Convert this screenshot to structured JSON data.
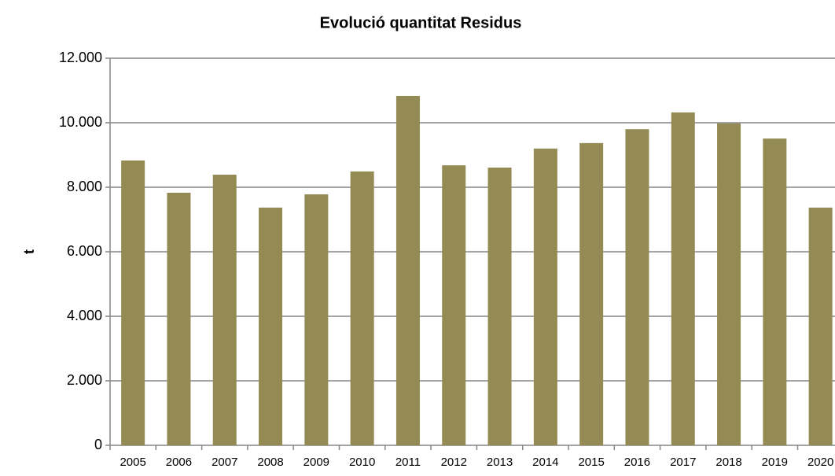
{
  "chart_data": {
    "type": "bar",
    "title": "Evolució quantitat Residus",
    "y_label": "t",
    "categories": [
      "2005",
      "2006",
      "2007",
      "2008",
      "2009",
      "2010",
      "2011",
      "2012",
      "2013",
      "2014",
      "2015",
      "2016",
      "2017",
      "2018",
      "2019",
      "2020"
    ],
    "values": [
      8830,
      7830,
      8390,
      7370,
      7780,
      8490,
      10830,
      8680,
      8610,
      9200,
      9370,
      9800,
      10320,
      9980,
      9510,
      7370
    ],
    "color": "#948b54",
    "ylim": [
      0,
      12000
    ],
    "yticks": [
      0,
      {
        "value": 2000,
        "label": "2.000"
      },
      {
        "value": 4000,
        "label": "4.000"
      },
      {
        "value": 6000,
        "label": "6.000"
      },
      {
        "value": 8000,
        "label": "8.000"
      },
      {
        "value": 10000,
        "label": "10.000"
      },
      {
        "value": 12000,
        "label": "12.000"
      }
    ],
    "grid": true
  }
}
